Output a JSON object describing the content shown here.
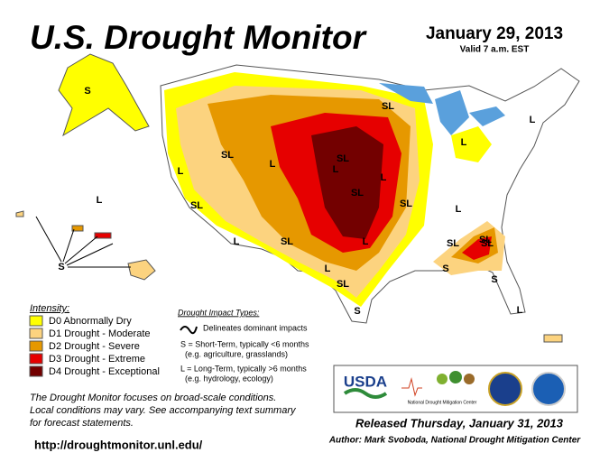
{
  "header": {
    "title": "U.S. Drought Monitor",
    "date": "January 29, 2013",
    "valid": "Valid 7 a.m. EST"
  },
  "legend": {
    "heading": "Intensity:",
    "items": [
      {
        "label": "D0 Abnormally Dry",
        "color": "#ffff00"
      },
      {
        "label": "D1 Drought - Moderate",
        "color": "#fcd37f"
      },
      {
        "label": "D2 Drought - Severe",
        "color": "#e69800"
      },
      {
        "label": "D3 Drought - Extreme",
        "color": "#e60000"
      },
      {
        "label": "D4 Drought - Exceptional",
        "color": "#730000"
      }
    ]
  },
  "impact": {
    "heading": "Drought Impact Types:",
    "line": "Delineates dominant impacts",
    "short": "S = Short-Term, typically <6 months",
    "short_eg": "(e.g. agriculture, grasslands)",
    "long": "L = Long-Term, typically >6 months",
    "long_eg": "(e.g. hydrology, ecology)"
  },
  "note": [
    "The Drought Monitor focuses on broad-scale conditions.",
    "Local conditions may vary. See accompanying text summary",
    "for forecast statements."
  ],
  "url": "http://droughtmonitor.unl.edu/",
  "logos": {
    "usda": "USDA",
    "ndmc": "National Drought Mitigation Center"
  },
  "released": "Released Thursday, January 31, 2013",
  "author": "Author: Mark Svoboda, National Drought Mitigation Center",
  "map_labels": [
    "S",
    "L",
    "S",
    "SL",
    "L",
    "SL",
    "SL",
    "L",
    "SL",
    "SL",
    "SL",
    "L",
    "SL",
    "L",
    "L",
    "SL",
    "SL",
    "SL",
    "L",
    "S",
    "S",
    "L",
    "L",
    "S",
    "SL",
    "L",
    "L",
    "L"
  ]
}
